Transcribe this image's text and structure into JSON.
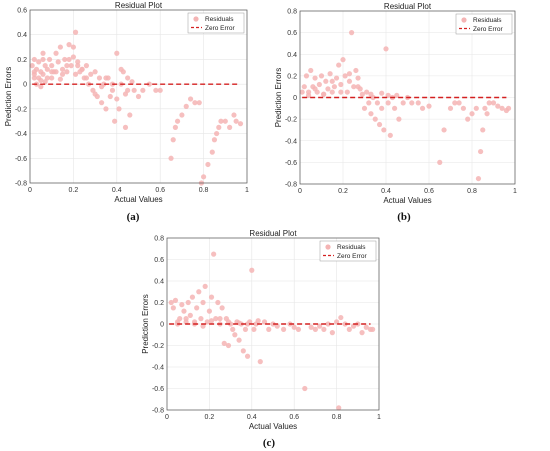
{
  "figure": {
    "captions": [
      "(a)",
      "(b)",
      "(c)"
    ]
  },
  "chart_data": [
    {
      "type": "scatter",
      "title": "Residual Plot",
      "xlabel": "Actual Values",
      "ylabel": "Prediction Errors",
      "xlim": [
        0,
        1
      ],
      "ylim": [
        -0.8,
        0.6
      ],
      "xticks": [
        0,
        0.2,
        0.4,
        0.6,
        0.8,
        1
      ],
      "yticks": [
        -0.8,
        -0.6,
        -0.4,
        -0.2,
        0,
        0.2,
        0.4,
        0.6
      ],
      "grid": true,
      "legend_position": "top-right",
      "series": [
        {
          "name": "Residuals",
          "color": "#f4b4b4",
          "x": [
            0.01,
            0.02,
            0.02,
            0.03,
            0.03,
            0.04,
            0.04,
            0.05,
            0.05,
            0.06,
            0.06,
            0.07,
            0.07,
            0.08,
            0.09,
            0.1,
            0.1,
            0.11,
            0.12,
            0.13,
            0.14,
            0.15,
            0.16,
            0.17,
            0.18,
            0.19,
            0.2,
            0.21,
            0.22,
            0.23,
            0.24,
            0.25,
            0.26,
            0.27,
            0.28,
            0.29,
            0.3,
            0.31,
            0.32,
            0.33,
            0.34,
            0.35,
            0.36,
            0.37,
            0.38,
            0.39,
            0.4,
            0.41,
            0.42,
            0.43,
            0.44,
            0.45,
            0.46,
            0.48,
            0.5,
            0.52,
            0.55,
            0.58,
            0.6,
            0.65,
            0.66,
            0.67,
            0.68,
            0.7,
            0.72,
            0.74,
            0.76,
            0.78,
            0.79,
            0.8,
            0.82,
            0.84,
            0.85,
            0.86,
            0.87,
            0.88,
            0.9,
            0.92,
            0.94,
            0.95,
            0.97,
            0.02,
            0.05,
            0.08,
            0.12,
            0.15,
            0.18,
            0.2,
            0.22,
            0.24,
            0.3,
            0.35,
            0.4,
            0.42,
            0.45,
            0.47,
            0.02,
            0.06,
            0.1,
            0.14,
            0.17,
            0.21,
            0.26,
            0.33,
            0.38,
            0.44
          ],
          "y": [
            0.15,
            0.2,
            0.05,
            0.12,
            0.0,
            0.18,
            0.05,
            0.1,
            -0.02,
            0.25,
            0.08,
            0.15,
            0.02,
            0.12,
            0.2,
            0.05,
            0.15,
            0.1,
            0.25,
            0.18,
            0.3,
            0.12,
            0.2,
            0.1,
            0.32,
            0.15,
            0.22,
            0.42,
            0.18,
            0.1,
            0.12,
            0.05,
            0.15,
            0.0,
            0.08,
            -0.05,
            0.1,
            -0.1,
            0.05,
            -0.15,
            0.0,
            -0.2,
            0.05,
            -0.1,
            -0.05,
            -0.3,
            0.25,
            -0.2,
            0.12,
            0.1,
            -0.35,
            0.05,
            -0.25,
            -0.05,
            -0.1,
            -0.05,
            0.0,
            -0.05,
            -0.05,
            -0.6,
            -0.45,
            -0.35,
            -0.3,
            -0.25,
            -0.18,
            -0.12,
            -0.15,
            -0.15,
            -0.8,
            -0.75,
            -0.65,
            -0.55,
            -0.45,
            -0.4,
            -0.35,
            -0.3,
            -0.3,
            -0.35,
            -0.25,
            -0.3,
            -0.32,
            0.1,
            0.03,
            0.05,
            0.1,
            0.08,
            0.2,
            0.3,
            0.15,
            0.12,
            -0.08,
            0.05,
            -0.12,
            0.0,
            -0.05,
            0.02,
            0.08,
            0.2,
            0.1,
            0.04,
            0.15,
            0.08,
            0.05,
            -0.02,
            0.0,
            -0.08
          ]
        },
        {
          "name": "Zero Error",
          "color": "#d42020",
          "style": "dashed",
          "y": 0
        }
      ]
    },
    {
      "type": "scatter",
      "title": "Residual Plot",
      "xlabel": "Actual Values",
      "ylabel": "Prediction Errors",
      "xlim": [
        0,
        1
      ],
      "ylim": [
        -0.8,
        0.8
      ],
      "xticks": [
        0,
        0.2,
        0.4,
        0.6,
        0.8,
        1
      ],
      "yticks": [
        -0.8,
        -0.6,
        -0.4,
        -0.2,
        0,
        0.2,
        0.4,
        0.6,
        0.8
      ],
      "grid": true,
      "legend_position": "top-right",
      "series": [
        {
          "name": "Residuals",
          "color": "#f4b4b4",
          "x": [
            0.01,
            0.02,
            0.03,
            0.04,
            0.05,
            0.06,
            0.07,
            0.08,
            0.09,
            0.1,
            0.11,
            0.12,
            0.13,
            0.14,
            0.15,
            0.16,
            0.17,
            0.18,
            0.19,
            0.2,
            0.21,
            0.22,
            0.23,
            0.24,
            0.25,
            0.26,
            0.27,
            0.28,
            0.29,
            0.3,
            0.31,
            0.32,
            0.33,
            0.34,
            0.35,
            0.36,
            0.37,
            0.38,
            0.39,
            0.4,
            0.41,
            0.42,
            0.43,
            0.44,
            0.45,
            0.46,
            0.48,
            0.5,
            0.52,
            0.55,
            0.57,
            0.6,
            0.65,
            0.67,
            0.7,
            0.72,
            0.74,
            0.76,
            0.78,
            0.8,
            0.82,
            0.83,
            0.84,
            0.85,
            0.86,
            0.87,
            0.88,
            0.9,
            0.92,
            0.94,
            0.96,
            0.97,
            0.04,
            0.07,
            0.11,
            0.15,
            0.19,
            0.23,
            0.27,
            0.33,
            0.38,
            0.41
          ],
          "y": [
            0.05,
            0.1,
            0.2,
            0.05,
            0.25,
            0.1,
            0.18,
            0.05,
            0.12,
            0.2,
            0.03,
            0.15,
            0.08,
            0.22,
            0.05,
            0.1,
            0.18,
            0.3,
            0.12,
            0.35,
            0.2,
            0.05,
            0.15,
            0.6,
            0.1,
            0.25,
            0.18,
            0.08,
            0.03,
            -0.1,
            0.05,
            -0.05,
            -0.15,
            0.0,
            -0.2,
            -0.05,
            -0.25,
            -0.1,
            -0.3,
            0.45,
            -0.05,
            -0.35,
            0.0,
            -0.1,
            0.02,
            -0.2,
            -0.05,
            0.0,
            -0.05,
            -0.05,
            -0.1,
            -0.08,
            -0.6,
            -0.3,
            -0.1,
            -0.05,
            -0.05,
            -0.1,
            -0.2,
            -0.15,
            -0.1,
            -0.75,
            -0.5,
            -0.3,
            -0.1,
            -0.15,
            -0.05,
            -0.05,
            -0.08,
            -0.1,
            -0.12,
            -0.1,
            0.02,
            0.08,
            0.03,
            0.15,
            0.05,
            0.22,
            0.1,
            0.03,
            0.04,
            0.02
          ]
        },
        {
          "name": "Zero Error",
          "color": "#d42020",
          "style": "dashed",
          "y": 0
        }
      ]
    },
    {
      "type": "scatter",
      "title": "Residual Plot",
      "xlabel": "Actual Values",
      "ylabel": "Prediction Errors",
      "xlim": [
        0,
        1
      ],
      "ylim": [
        -0.8,
        0.8
      ],
      "xticks": [
        0,
        0.2,
        0.4,
        0.6,
        0.8,
        1
      ],
      "yticks": [
        -0.8,
        -0.6,
        -0.4,
        -0.2,
        0,
        0.2,
        0.4,
        0.6,
        0.8
      ],
      "grid": true,
      "legend_position": "top-right",
      "series": [
        {
          "name": "Residuals",
          "color": "#f4b4b4",
          "x": [
            0.02,
            0.03,
            0.04,
            0.05,
            0.06,
            0.07,
            0.08,
            0.09,
            0.1,
            0.11,
            0.12,
            0.13,
            0.14,
            0.15,
            0.16,
            0.17,
            0.18,
            0.19,
            0.2,
            0.21,
            0.22,
            0.23,
            0.24,
            0.25,
            0.26,
            0.27,
            0.28,
            0.29,
            0.3,
            0.31,
            0.32,
            0.33,
            0.34,
            0.35,
            0.36,
            0.37,
            0.38,
            0.39,
            0.4,
            0.41,
            0.42,
            0.44,
            0.46,
            0.48,
            0.5,
            0.52,
            0.55,
            0.58,
            0.6,
            0.62,
            0.65,
            0.68,
            0.7,
            0.72,
            0.74,
            0.76,
            0.78,
            0.8,
            0.81,
            0.82,
            0.84,
            0.86,
            0.88,
            0.9,
            0.92,
            0.94,
            0.96,
            0.97,
            0.05,
            0.09,
            0.13,
            0.17,
            0.21,
            0.25,
            0.29,
            0.34,
            0.38,
            0.43
          ],
          "y": [
            0.2,
            0.15,
            0.22,
            0.0,
            0.05,
            0.18,
            0.12,
            0.02,
            0.2,
            0.08,
            0.25,
            0.0,
            0.15,
            0.3,
            0.05,
            0.2,
            0.35,
            0.02,
            0.12,
            0.25,
            0.65,
            0.05,
            0.2,
            0.0,
            0.15,
            -0.18,
            0.05,
            -0.2,
            0.0,
            -0.05,
            -0.1,
            0.02,
            -0.15,
            0.0,
            -0.25,
            -0.05,
            -0.3,
            0.02,
            0.5,
            -0.05,
            0.0,
            -0.35,
            0.02,
            -0.05,
            0.0,
            -0.02,
            -0.05,
            0.0,
            -0.03,
            -0.05,
            -0.6,
            -0.03,
            -0.05,
            -0.02,
            -0.05,
            0.0,
            -0.08,
            0.02,
            -0.78,
            0.06,
            0.0,
            -0.05,
            -0.02,
            0.0,
            -0.08,
            -0.03,
            -0.05,
            -0.05,
            0.02,
            0.05,
            0.02,
            -0.02,
            0.03,
            0.05,
            0.02,
            0.01,
            0.0,
            0.03
          ]
        },
        {
          "name": "Zero Error",
          "color": "#d42020",
          "style": "dashed",
          "y": 0
        }
      ]
    }
  ]
}
